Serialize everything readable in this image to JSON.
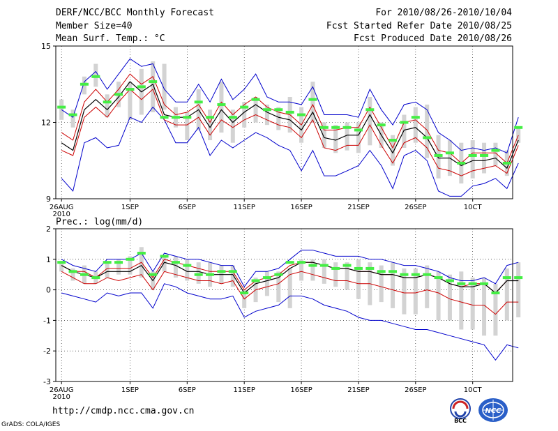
{
  "header": {
    "title": "DERF/NCC/BCC Monthly Forecast",
    "member_size": "Member Size=40",
    "variable": "Mean Surf. Temp.: °C",
    "period": "For 2010/08/26-2010/10/04",
    "start_date": "Fcst Started Refer Date 2010/08/25",
    "produced": "Fcst Produced Date 2010/08/26"
  },
  "footer": {
    "url": "http://cmdp.ncc.cma.gov.cn",
    "grads": "GrADS: COLA/IGES",
    "logo_bcc_label": "BCC",
    "logo_ncc_label": "NCC"
  },
  "colors": {
    "band": "#d3d3d3",
    "outer": "#0000cc",
    "inner": "#cc0000",
    "mean": "#000000",
    "marker": "#44ee44"
  },
  "chart_data": [
    {
      "type": "line",
      "name": "temperature",
      "title": "Mean Surf. Temp.: °C",
      "ylim": [
        9,
        15
      ],
      "yticks": [
        9,
        12,
        15
      ],
      "xlim": [
        0.5,
        40.5
      ],
      "xticks": [
        {
          "day": 1,
          "label": "26AUG",
          "sub": "2010"
        },
        {
          "day": 7,
          "label": "1SEP"
        },
        {
          "day": 12,
          "label": "6SEP"
        },
        {
          "day": 17,
          "label": "11SEP"
        },
        {
          "day": 22,
          "label": "16SEP"
        },
        {
          "day": 27,
          "label": "21SEP"
        },
        {
          "day": 32,
          "label": "26SEP"
        },
        {
          "day": 37,
          "label": "10CT"
        }
      ],
      "series": [
        {
          "name": "max",
          "values": [
            9.8,
            9.3,
            11.2,
            11.4,
            11.0,
            11.1,
            12.2,
            12.0,
            12.6,
            12.1,
            11.2,
            11.2,
            11.8,
            10.7,
            11.3,
            11.0,
            11.3,
            11.6,
            11.4,
            11.1,
            10.9,
            10.1,
            10.9,
            9.9,
            9.9,
            10.1,
            10.3,
            10.9,
            10.3,
            9.4,
            10.7,
            10.9,
            10.5,
            9.3,
            9.1,
            9.1,
            9.5,
            9.6,
            9.8,
            9.4,
            10.4
          ]
        },
        {
          "name": "upper",
          "values": [
            12.5,
            12.2,
            13.6,
            14.0,
            13.3,
            13.9,
            14.5,
            14.2,
            14.3,
            13.3,
            12.8,
            12.8,
            13.5,
            12.8,
            13.7,
            12.9,
            13.3,
            13.9,
            13.0,
            12.8,
            12.8,
            12.7,
            13.4,
            12.3,
            12.3,
            12.3,
            12.2,
            13.3,
            12.5,
            11.9,
            12.7,
            12.8,
            12.5,
            11.6,
            11.3,
            10.9,
            11.0,
            10.9,
            11.0,
            10.8,
            12.2
          ]
        },
        {
          "name": "q80",
          "values": [
            11.6,
            11.3,
            12.8,
            13.3,
            12.8,
            13.3,
            13.9,
            13.5,
            13.8,
            12.7,
            12.3,
            12.4,
            12.7,
            12.0,
            12.8,
            12.3,
            12.7,
            13.0,
            12.6,
            12.4,
            12.3,
            11.9,
            12.7,
            11.7,
            11.7,
            11.8,
            11.8,
            12.6,
            11.8,
            11.0,
            12.0,
            12.1,
            11.7,
            10.9,
            10.8,
            10.4,
            10.8,
            10.8,
            10.8,
            10.4,
            11.5
          ]
        },
        {
          "name": "mean",
          "values": [
            11.2,
            10.9,
            12.5,
            12.9,
            12.5,
            13.0,
            13.6,
            13.2,
            13.5,
            12.3,
            12.2,
            12.2,
            12.5,
            11.8,
            12.5,
            12.0,
            12.4,
            12.7,
            12.4,
            12.2,
            12.1,
            11.7,
            12.4,
            11.4,
            11.3,
            11.5,
            11.5,
            12.3,
            11.5,
            10.8,
            11.7,
            11.8,
            11.4,
            10.6,
            10.6,
            10.3,
            10.5,
            10.5,
            10.6,
            10.2,
            11.3
          ]
        },
        {
          "name": "q20",
          "values": [
            10.9,
            10.7,
            12.2,
            12.6,
            12.2,
            12.8,
            13.3,
            12.9,
            13.3,
            12.1,
            11.9,
            11.9,
            12.2,
            11.5,
            12.1,
            11.8,
            12.1,
            12.3,
            12.1,
            11.9,
            11.8,
            11.4,
            12.1,
            11.0,
            10.9,
            11.1,
            11.1,
            11.9,
            11.1,
            10.4,
            11.2,
            11.4,
            11.0,
            10.2,
            10.1,
            9.9,
            10.1,
            10.2,
            10.3,
            10.0,
            11.1
          ]
        }
      ],
      "bars": [
        {
          "low": 12.1,
          "high": 12.9
        },
        {
          "low": 11.8,
          "high": 12.5
        },
        {
          "low": 13.1,
          "high": 13.8
        },
        {
          "low": 13.4,
          "high": 14.3
        },
        {
          "low": 12.2,
          "high": 13.1
        },
        {
          "low": 12.6,
          "high": 13.6
        },
        {
          "low": 12.1,
          "high": 13.6
        },
        {
          "low": 12.3,
          "high": 14.1
        },
        {
          "low": 12.4,
          "high": 14.4
        },
        {
          "low": 12.5,
          "high": 14.3
        },
        {
          "low": 11.8,
          "high": 12.6
        },
        {
          "low": 11.3,
          "high": 12.4
        },
        {
          "low": 11.7,
          "high": 13.3
        },
        {
          "low": 11.3,
          "high": 12.5
        },
        {
          "low": 11.6,
          "high": 13.6
        },
        {
          "low": 11.2,
          "high": 12.5
        },
        {
          "low": 11.8,
          "high": 12.8
        },
        {
          "low": 12.0,
          "high": 13.0
        },
        {
          "low": 11.9,
          "high": 12.7
        },
        {
          "low": 11.7,
          "high": 12.6
        },
        {
          "low": 11.6,
          "high": 13.0
        },
        {
          "low": 11.2,
          "high": 12.6
        },
        {
          "low": 12.0,
          "high": 13.6
        },
        {
          "low": 11.0,
          "high": 12.0
        },
        {
          "low": 10.8,
          "high": 11.9
        },
        {
          "low": 10.9,
          "high": 12.0
        },
        {
          "low": 10.8,
          "high": 12.0
        },
        {
          "low": 11.1,
          "high": 13.0
        },
        {
          "low": 11.0,
          "high": 12.0
        },
        {
          "low": 10.3,
          "high": 11.5
        },
        {
          "low": 11.0,
          "high": 12.3
        },
        {
          "low": 11.2,
          "high": 12.6
        },
        {
          "low": 10.6,
          "high": 12.7
        },
        {
          "low": 9.8,
          "high": 11.5
        },
        {
          "low": 9.9,
          "high": 11.3
        },
        {
          "low": 9.6,
          "high": 11.2
        },
        {
          "low": 9.8,
          "high": 11.3
        },
        {
          "low": 10.0,
          "high": 11.2
        },
        {
          "low": 10.3,
          "high": 11.2
        },
        {
          "low": 9.9,
          "high": 10.9
        },
        {
          "low": 11.2,
          "high": 11.8
        }
      ],
      "markers": [
        12.6,
        12.3,
        13.5,
        13.8,
        12.8,
        13.1,
        13.3,
        13.4,
        13.6,
        12.2,
        12.2,
        12.2,
        12.8,
        12.2,
        12.7,
        12.2,
        12.6,
        12.9,
        12.5,
        12.5,
        12.4,
        12.3,
        12.9,
        11.8,
        11.8,
        11.8,
        11.7,
        12.5,
        11.9,
        11.3,
        12.0,
        12.2,
        11.4,
        10.7,
        10.8,
        10.4,
        10.7,
        10.7,
        10.9,
        10.4,
        11.8
      ]
    },
    {
      "type": "line",
      "name": "precipitation",
      "title": "Prec.: log(mm/d)",
      "ylim": [
        -3,
        2
      ],
      "yticks": [
        -3,
        -2,
        -1,
        0,
        1,
        2
      ],
      "xlim": [
        0.5,
        40.5
      ],
      "xticks": [
        {
          "day": 1,
          "label": "26AUG",
          "sub": "2010"
        },
        {
          "day": 7,
          "label": "1SEP"
        },
        {
          "day": 12,
          "label": "6SEP"
        },
        {
          "day": 17,
          "label": "11SEP"
        },
        {
          "day": 22,
          "label": "16SEP"
        },
        {
          "day": 27,
          "label": "21SEP"
        },
        {
          "day": 32,
          "label": "26SEP"
        },
        {
          "day": 37,
          "label": "10CT"
        }
      ],
      "series": [
        {
          "name": "upper",
          "values": [
            1.0,
            0.8,
            0.7,
            0.6,
            1.0,
            1.0,
            1.0,
            1.2,
            0.6,
            1.2,
            1.1,
            1.0,
            1.0,
            0.9,
            0.8,
            0.8,
            0.1,
            0.6,
            0.6,
            0.7,
            1.0,
            1.3,
            1.3,
            1.2,
            1.1,
            1.1,
            1.1,
            1.0,
            1.0,
            0.9,
            0.8,
            0.8,
            0.7,
            0.6,
            0.4,
            0.3,
            0.3,
            0.4,
            0.2,
            0.8,
            0.9
          ]
        },
        {
          "name": "q80",
          "values": [
            0.8,
            0.6,
            0.6,
            0.4,
            0.7,
            0.7,
            0.7,
            0.9,
            0.4,
            1.0,
            0.9,
            0.8,
            0.7,
            0.6,
            0.6,
            0.6,
            0.0,
            0.3,
            0.4,
            0.5,
            0.8,
            0.9,
            0.9,
            0.8,
            0.7,
            0.7,
            0.6,
            0.6,
            0.5,
            0.5,
            0.4,
            0.4,
            0.5,
            0.4,
            0.2,
            0.1,
            0.2,
            0.2,
            -0.1,
            0.3,
            0.3
          ]
        },
        {
          "name": "mean",
          "values": [
            0.8,
            0.6,
            0.5,
            0.4,
            0.6,
            0.6,
            0.6,
            0.8,
            0.3,
            0.9,
            0.8,
            0.6,
            0.6,
            0.5,
            0.5,
            0.5,
            -0.1,
            0.2,
            0.3,
            0.4,
            0.7,
            0.9,
            0.9,
            0.8,
            0.7,
            0.7,
            0.6,
            0.6,
            0.5,
            0.5,
            0.4,
            0.4,
            0.5,
            0.4,
            0.2,
            0.1,
            0.1,
            0.2,
            -0.1,
            0.3,
            0.3
          ]
        },
        {
          "name": "q20",
          "values": [
            0.6,
            0.4,
            0.2,
            0.2,
            0.4,
            0.3,
            0.4,
            0.5,
            0.0,
            0.6,
            0.5,
            0.4,
            0.3,
            0.3,
            0.2,
            0.3,
            -0.3,
            0.0,
            0.1,
            0.2,
            0.5,
            0.6,
            0.5,
            0.4,
            0.3,
            0.3,
            0.2,
            0.2,
            0.1,
            0.0,
            -0.1,
            -0.1,
            0.0,
            -0.1,
            -0.3,
            -0.4,
            -0.5,
            -0.5,
            -0.8,
            -0.4,
            -0.4
          ]
        },
        {
          "name": "min",
          "values": [
            -0.1,
            -0.2,
            -0.3,
            -0.4,
            -0.1,
            -0.2,
            -0.1,
            -0.1,
            -0.6,
            0.2,
            0.1,
            -0.1,
            -0.2,
            -0.3,
            -0.3,
            -0.2,
            -0.9,
            -0.7,
            -0.6,
            -0.5,
            -0.2,
            -0.2,
            -0.3,
            -0.5,
            -0.6,
            -0.7,
            -0.9,
            -1.0,
            -1.0,
            -1.1,
            -1.2,
            -1.3,
            -1.3,
            -1.4,
            -1.5,
            -1.6,
            -1.7,
            -1.8,
            -2.3,
            -1.8,
            -1.9
          ]
        }
      ],
      "bars": [
        {
          "low": 0.6,
          "high": 0.9
        },
        {
          "low": 0.3,
          "high": 0.7
        },
        {
          "low": 0.2,
          "high": 0.8
        },
        {
          "low": 0.2,
          "high": 0.6
        },
        {
          "low": 0.4,
          "high": 0.9
        },
        {
          "low": 0.5,
          "high": 1.0
        },
        {
          "low": 0.5,
          "high": 1.1
        },
        {
          "low": 0.4,
          "high": 1.4
        },
        {
          "low": 0.0,
          "high": 0.6
        },
        {
          "low": 0.6,
          "high": 1.1
        },
        {
          "low": 0.4,
          "high": 1.1
        },
        {
          "low": 0.3,
          "high": 1.0
        },
        {
          "low": 0.2,
          "high": 0.9
        },
        {
          "low": 0.1,
          "high": 0.9
        },
        {
          "low": 0.2,
          "high": 0.8
        },
        {
          "low": 0.1,
          "high": 0.8
        },
        {
          "low": -0.6,
          "high": 0.0
        },
        {
          "low": -0.4,
          "high": 0.4
        },
        {
          "low": -0.2,
          "high": 0.6
        },
        {
          "low": -0.4,
          "high": 0.6
        },
        {
          "low": -0.6,
          "high": 0.7
        },
        {
          "low": 0.3,
          "high": 1.0
        },
        {
          "low": 0.3,
          "high": 1.0
        },
        {
          "low": 0.2,
          "high": 1.0
        },
        {
          "low": 0.1,
          "high": 0.9
        },
        {
          "low": 0.0,
          "high": 0.9
        },
        {
          "low": -0.3,
          "high": 1.0
        },
        {
          "low": -0.5,
          "high": 0.9
        },
        {
          "low": -0.4,
          "high": 0.8
        },
        {
          "low": -0.6,
          "high": 0.9
        },
        {
          "low": -0.8,
          "high": 0.7
        },
        {
          "low": -0.8,
          "high": 0.7
        },
        {
          "low": -0.6,
          "high": 0.8
        },
        {
          "low": -1.0,
          "high": 0.6
        },
        {
          "low": -1.0,
          "high": 0.5
        },
        {
          "low": -1.3,
          "high": 0.6
        },
        {
          "low": -1.3,
          "high": 0.4
        },
        {
          "low": -1.5,
          "high": 0.4
        },
        {
          "low": -1.5,
          "high": 0.2
        },
        {
          "low": -1.0,
          "high": 0.7
        },
        {
          "low": -0.9,
          "high": 0.9
        }
      ],
      "markers": [
        0.9,
        0.6,
        0.5,
        0.4,
        0.9,
        0.9,
        1.0,
        1.2,
        0.5,
        1.1,
        0.9,
        0.8,
        0.5,
        0.5,
        0.6,
        0.6,
        -0.1,
        0.3,
        0.4,
        0.5,
        0.9,
        0.9,
        0.8,
        0.8,
        0.7,
        0.8,
        0.7,
        0.7,
        0.6,
        0.6,
        0.5,
        0.5,
        0.5,
        0.4,
        0.3,
        0.2,
        0.2,
        0.2,
        -0.1,
        0.4,
        0.4
      ]
    }
  ]
}
